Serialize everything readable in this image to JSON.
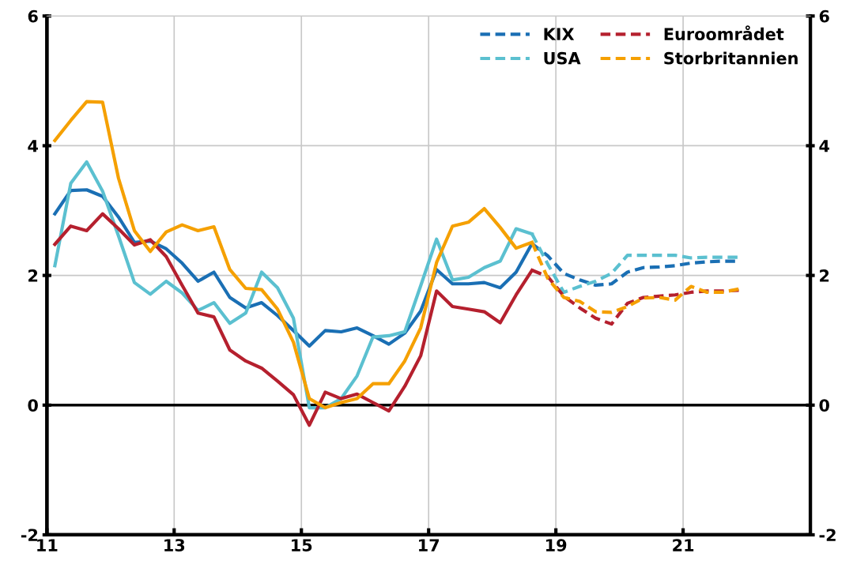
{
  "chart_data": {
    "type": "line",
    "xlim": [
      11,
      23
    ],
    "xticks": [
      11,
      13,
      15,
      17,
      19,
      21
    ],
    "ylim": [
      -2,
      6
    ],
    "yticks": [
      -2,
      0,
      2,
      4,
      6
    ],
    "y2lim": [
      -2,
      6
    ],
    "y2ticks": [
      -2,
      0,
      2,
      4,
      6
    ],
    "grid": true,
    "legend": "top right",
    "marker": "none",
    "ref_lines": [
      {
        "axis": "y",
        "value": 0,
        "color": "#000000"
      }
    ],
    "series": [
      {
        "color": "#1a6fb4",
        "line_style": "solid",
        "x": [
          11.125,
          11.375,
          11.625,
          11.875,
          12.125,
          12.375,
          12.625,
          12.875,
          13.125,
          13.375,
          13.625,
          13.875,
          14.125,
          14.375,
          14.625,
          14.875,
          15.125,
          15.375,
          15.625,
          15.875,
          16.125,
          16.375,
          16.625,
          16.875,
          17.125,
          17.375,
          17.625,
          17.875,
          18.125,
          18.375,
          18.625
        ],
        "values": [
          2.95,
          3.31,
          3.32,
          3.22,
          2.9,
          2.51,
          2.53,
          2.41,
          2.19,
          1.91,
          2.05,
          1.66,
          1.5,
          1.58,
          1.38,
          1.15,
          0.91,
          1.15,
          1.13,
          1.19,
          1.07,
          0.94,
          1.11,
          1.45,
          2.09,
          1.87,
          1.87,
          1.89,
          1.81,
          2.05,
          2.49
        ]
      },
      {
        "color": "#5bc0d0",
        "line_style": "solid",
        "x": [
          11.125,
          11.375,
          11.625,
          11.875,
          12.125,
          12.375,
          12.625,
          12.875,
          13.125,
          13.375,
          13.625,
          13.875,
          14.125,
          14.375,
          14.625,
          14.875,
          15.125,
          15.375,
          15.625,
          15.875,
          16.125,
          16.375,
          16.625,
          16.875,
          17.125,
          17.375,
          17.625,
          17.875,
          18.125,
          18.375,
          18.625
        ],
        "values": [
          2.15,
          3.42,
          3.75,
          3.3,
          2.61,
          1.89,
          1.71,
          1.91,
          1.73,
          1.46,
          1.58,
          1.26,
          1.42,
          2.05,
          1.81,
          1.34,
          -0.04,
          -0.04,
          0.1,
          0.45,
          1.05,
          1.07,
          1.13,
          1.84,
          2.56,
          1.93,
          1.97,
          2.12,
          2.22,
          2.72,
          2.64
        ]
      },
      {
        "color": "#b5202e",
        "line_style": "solid",
        "x": [
          11.125,
          11.375,
          11.625,
          11.875,
          12.125,
          12.375,
          12.625,
          12.875,
          13.125,
          13.375,
          13.625,
          13.875,
          14.125,
          14.375,
          14.625,
          14.875,
          15.125,
          15.375,
          15.625,
          15.875,
          16.125,
          16.375,
          16.625,
          16.875,
          17.125,
          17.375,
          17.625,
          17.875,
          18.125,
          18.375,
          18.625
        ],
        "values": [
          2.48,
          2.76,
          2.69,
          2.95,
          2.72,
          2.47,
          2.55,
          2.29,
          1.85,
          1.42,
          1.36,
          0.85,
          0.68,
          0.57,
          0.37,
          0.16,
          -0.31,
          0.2,
          0.1,
          0.17,
          0.04,
          -0.09,
          0.29,
          0.76,
          1.76,
          1.52,
          1.48,
          1.44,
          1.27,
          1.7,
          2.08
        ]
      },
      {
        "color": "#f5a000",
        "line_style": "solid",
        "x": [
          11.125,
          11.375,
          11.625,
          11.875,
          12.125,
          12.375,
          12.625,
          12.875,
          13.125,
          13.375,
          13.625,
          13.875,
          14.125,
          14.375,
          14.625,
          14.875,
          15.125,
          15.375,
          15.625,
          15.875,
          16.125,
          16.375,
          16.625,
          16.875,
          17.125,
          17.375,
          17.625,
          17.875,
          18.125,
          18.375,
          18.625
        ],
        "values": [
          4.08,
          4.39,
          4.68,
          4.67,
          3.5,
          2.69,
          2.37,
          2.67,
          2.78,
          2.69,
          2.75,
          2.09,
          1.8,
          1.78,
          1.48,
          0.97,
          0.1,
          -0.04,
          0.04,
          0.1,
          0.33,
          0.33,
          0.68,
          1.19,
          2.2,
          2.76,
          2.82,
          3.03,
          2.74,
          2.42,
          2.51
        ]
      },
      {
        "name": "KIX",
        "color": "#1a6fb4",
        "line_style": "dashed",
        "x": [
          18.625,
          18.875,
          19.125,
          19.375,
          19.625,
          19.875,
          20.125,
          20.375,
          20.625,
          20.875,
          21.125,
          21.375,
          21.625,
          21.875
        ],
        "values": [
          2.49,
          2.3,
          2.03,
          1.93,
          1.85,
          1.87,
          2.05,
          2.12,
          2.13,
          2.15,
          2.19,
          2.21,
          2.22,
          2.22
        ]
      },
      {
        "name": "USA",
        "color": "#5bc0d0",
        "line_style": "dashed",
        "x": [
          18.625,
          18.875,
          19.125,
          19.375,
          19.625,
          19.875,
          20.125,
          20.375,
          20.625,
          20.875,
          21.125,
          21.375,
          21.625,
          21.875
        ],
        "values": [
          2.64,
          2.17,
          1.74,
          1.83,
          1.91,
          2.03,
          2.31,
          2.31,
          2.31,
          2.31,
          2.27,
          2.28,
          2.28,
          2.28
        ]
      },
      {
        "name": "Euroområdet",
        "color": "#b5202e",
        "line_style": "dashed",
        "x": [
          18.625,
          18.875,
          19.125,
          19.375,
          19.625,
          19.875,
          20.125,
          20.375,
          20.625,
          20.875,
          21.125,
          21.375,
          21.625,
          21.875
        ],
        "values": [
          2.08,
          1.98,
          1.68,
          1.5,
          1.34,
          1.25,
          1.57,
          1.66,
          1.68,
          1.7,
          1.74,
          1.76,
          1.76,
          1.77
        ]
      },
      {
        "name": "Storbritannien",
        "color": "#f5a000",
        "line_style": "dashed",
        "x": [
          18.625,
          18.875,
          19.125,
          19.375,
          19.625,
          19.875,
          20.125,
          20.375,
          20.625,
          20.875,
          21.125,
          21.375,
          21.625,
          21.875
        ],
        "values": [
          2.51,
          1.95,
          1.66,
          1.6,
          1.44,
          1.43,
          1.52,
          1.65,
          1.66,
          1.62,
          1.83,
          1.74,
          1.74,
          1.79
        ]
      }
    ]
  }
}
